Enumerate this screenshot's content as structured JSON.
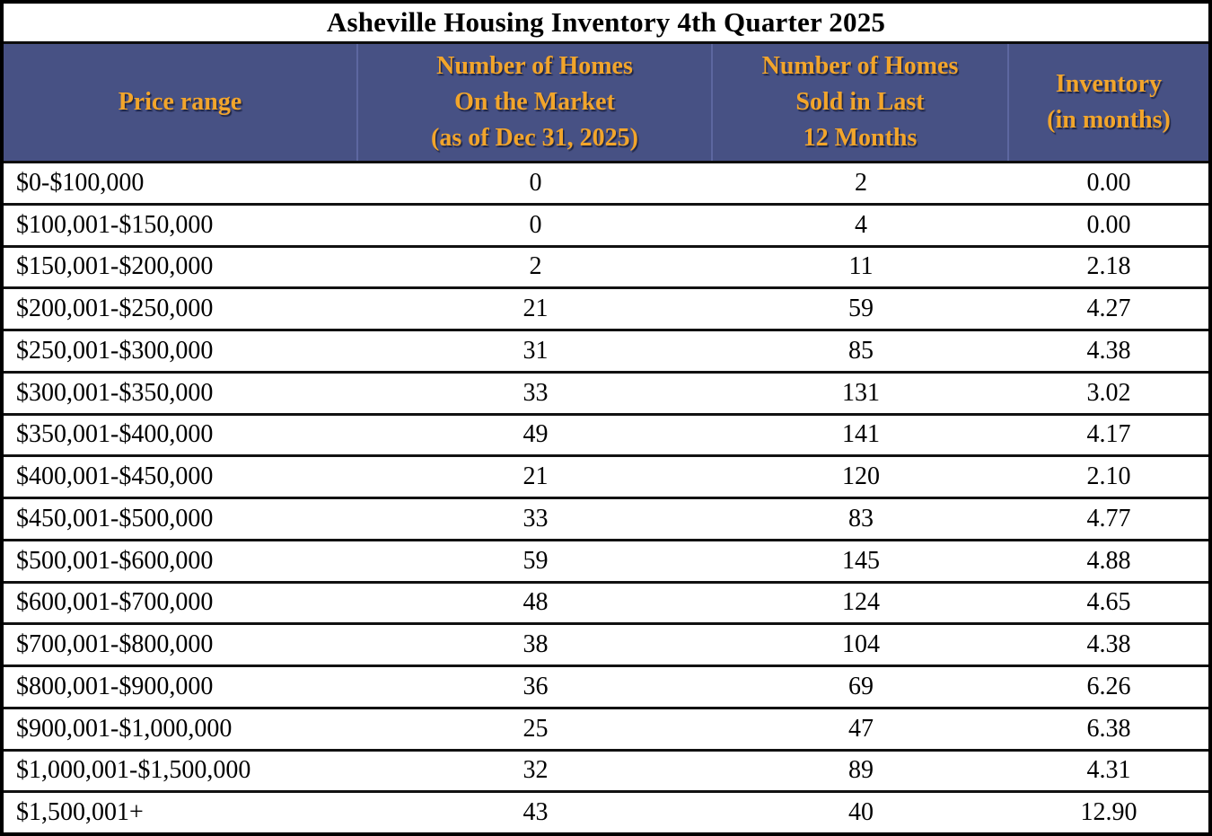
{
  "title": "Asheville Housing Inventory 4th Quarter 2025",
  "colors": {
    "header_bg": "#475184",
    "header_text": "#F2A52B",
    "body_text": "#000000",
    "row_border": "#111111",
    "header_divider": "#5d67a0"
  },
  "chart_data": {
    "type": "table",
    "title": "Asheville Housing Inventory 4th Quarter 2025",
    "columns": [
      {
        "label": "Price range",
        "lines": [
          "Price range"
        ]
      },
      {
        "label": "Number of Homes On the Market (as of Dec 31, 2025)",
        "lines": [
          "Number of Homes",
          "On the Market",
          "(as of Dec 31, 2025)"
        ]
      },
      {
        "label": "Number of Homes Sold in Last 12 Months",
        "lines": [
          "Number of Homes",
          "Sold in Last",
          "12 Months"
        ]
      },
      {
        "label": "Inventory (in months)",
        "lines": [
          "Inventory",
          "(in months)"
        ]
      }
    ],
    "rows": [
      [
        "$0-$100,000",
        "0",
        "2",
        "0.00"
      ],
      [
        "$100,001-$150,000",
        "0",
        "4",
        "0.00"
      ],
      [
        "$150,001-$200,000",
        "2",
        "11",
        "2.18"
      ],
      [
        "$200,001-$250,000",
        "21",
        "59",
        "4.27"
      ],
      [
        "$250,001-$300,000",
        "31",
        "85",
        "4.38"
      ],
      [
        "$300,001-$350,000",
        "33",
        "131",
        "3.02"
      ],
      [
        "$350,001-$400,000",
        "49",
        "141",
        "4.17"
      ],
      [
        "$400,001-$450,000",
        "21",
        "120",
        "2.10"
      ],
      [
        "$450,001-$500,000",
        "33",
        "83",
        "4.77"
      ],
      [
        "$500,001-$600,000",
        "59",
        "145",
        "4.88"
      ],
      [
        "$600,001-$700,000",
        "48",
        "124",
        "4.65"
      ],
      [
        "$700,001-$800,000",
        "38",
        "104",
        "4.38"
      ],
      [
        "$800,001-$900,000",
        "36",
        "69",
        "6.26"
      ],
      [
        "$900,001-$1,000,000",
        "25",
        "47",
        "6.38"
      ],
      [
        "$1,000,001-$1,500,000",
        "32",
        "89",
        "4.31"
      ],
      [
        "$1,500,001+",
        "43",
        "40",
        "12.90"
      ]
    ]
  }
}
